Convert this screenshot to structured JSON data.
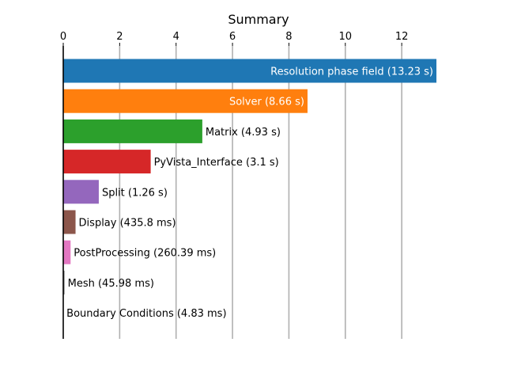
{
  "chart_data": {
    "type": "bar",
    "orientation": "horizontal",
    "title": "Summary",
    "xlabel": "",
    "ylabel": "",
    "xlim": [
      0,
      13.23
    ],
    "x_ticks": [
      0,
      2,
      4,
      6,
      8,
      10,
      12
    ],
    "x_tick_labels": [
      "0",
      "2",
      "4",
      "6",
      "8",
      "10",
      "12"
    ],
    "x_axis_position": "top",
    "grid": "vertical",
    "categories": [
      "Resolution phase field",
      "Solver",
      "Matrix",
      "PyVista_Interface",
      "Split",
      "Display",
      "PostProcessing",
      "Mesh",
      "Boundary Conditions"
    ],
    "values": [
      13.23,
      8.66,
      4.93,
      3.1,
      1.26,
      0.4358,
      0.26039,
      0.04598,
      0.00483
    ],
    "bar_labels": [
      "Resolution phase field (13.23 s)",
      "Solver (8.66 s)",
      "Matrix (4.93 s)",
      "PyVista_Interface (3.1 s)",
      "Split (1.26 s)",
      "Display (435.8 ms)",
      "PostProcessing (260.39 ms)",
      "Mesh (45.98 ms)",
      "Boundary Conditions (4.83 ms)"
    ],
    "label_inside": [
      true,
      true,
      false,
      false,
      false,
      false,
      false,
      false,
      false
    ],
    "colors": [
      "#1f77b4",
      "#ff7f0e",
      "#2ca02c",
      "#d62728",
      "#9467bd",
      "#8c564b",
      "#e377c2",
      "#7f7f7f",
      "#bcbd22"
    ]
  }
}
